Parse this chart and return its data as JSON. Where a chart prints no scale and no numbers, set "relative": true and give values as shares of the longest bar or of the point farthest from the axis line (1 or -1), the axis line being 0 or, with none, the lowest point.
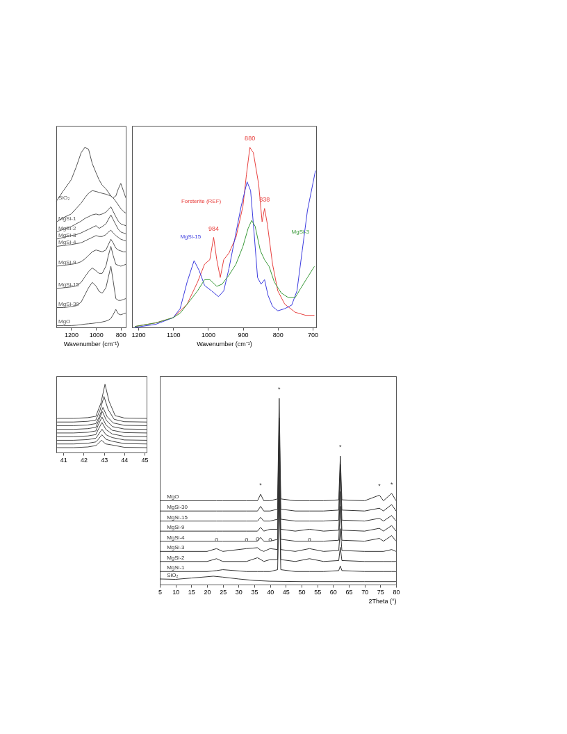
{
  "chart_data": [
    {
      "type": "line",
      "relative": true,
      "xlabel": "Wavenumber (cm⁻¹)",
      "xlim": [
        1320,
        760
      ],
      "xticks": [
        1200,
        1000,
        800
      ],
      "x": [
        1320,
        1262,
        1200,
        1160,
        1120,
        1090,
        1060,
        1030,
        1000,
        975,
        950,
        920,
        900,
        880,
        862,
        840,
        820,
        800,
        780,
        760
      ],
      "series": [
        {
          "name": "SiO₂",
          "color": "#555555",
          "values": [
            0.7,
            0.76,
            0.82,
            0.89,
            0.97,
            1.0,
            0.99,
            0.91,
            0.86,
            0.82,
            0.79,
            0.77,
            0.75,
            0.73,
            0.72,
            0.73,
            0.77,
            0.8,
            0.76,
            0.72
          ]
        },
        {
          "name": "MgSi-1",
          "color": "#555555",
          "values": [
            0.585,
            0.61,
            0.63,
            0.66,
            0.69,
            0.72,
            0.745,
            0.76,
            0.755,
            0.75,
            0.745,
            0.74,
            0.735,
            0.73,
            0.72,
            0.7,
            0.68,
            0.66,
            0.645,
            0.635
          ]
        },
        {
          "name": "MgSi-2",
          "color": "#555555",
          "values": [
            0.53,
            0.545,
            0.56,
            0.575,
            0.59,
            0.605,
            0.615,
            0.625,
            0.63,
            0.625,
            0.63,
            0.64,
            0.655,
            0.67,
            0.645,
            0.615,
            0.59,
            0.575,
            0.57,
            0.565
          ]
        },
        {
          "name": "MgSi-3",
          "color": "#555555",
          "values": [
            0.49,
            0.5,
            0.51,
            0.515,
            0.525,
            0.535,
            0.545,
            0.555,
            0.565,
            0.55,
            0.56,
            0.575,
            0.6,
            0.625,
            0.6,
            0.57,
            0.545,
            0.53,
            0.525,
            0.52
          ]
        },
        {
          "name": "MgSi-4",
          "color": "#555555",
          "values": [
            0.45,
            0.455,
            0.46,
            0.465,
            0.47,
            0.48,
            0.49,
            0.5,
            0.51,
            0.505,
            0.505,
            0.515,
            0.53,
            0.54,
            0.525,
            0.51,
            0.5,
            0.49,
            0.485,
            0.48
          ]
        },
        {
          "name": "MgSi-9",
          "color": "#555555",
          "values": [
            0.34,
            0.345,
            0.35,
            0.355,
            0.365,
            0.38,
            0.4,
            0.42,
            0.43,
            0.425,
            0.42,
            0.43,
            0.46,
            0.49,
            0.47,
            0.44,
            0.43,
            0.425,
            0.42,
            0.42
          ]
        },
        {
          "name": "MgSi-15",
          "color": "#555555",
          "values": [
            0.215,
            0.22,
            0.225,
            0.23,
            0.25,
            0.28,
            0.31,
            0.33,
            0.315,
            0.3,
            0.3,
            0.34,
            0.4,
            0.45,
            0.4,
            0.35,
            0.345,
            0.34,
            0.345,
            0.35
          ]
        },
        {
          "name": "MgSi-30",
          "color": "#555555",
          "values": [
            0.11,
            0.11,
            0.115,
            0.12,
            0.14,
            0.18,
            0.22,
            0.25,
            0.23,
            0.2,
            0.19,
            0.22,
            0.28,
            0.34,
            0.26,
            0.16,
            0.15,
            0.15,
            0.155,
            0.16
          ]
        },
        {
          "name": "MgO",
          "color": "#555555",
          "values": [
            0.01,
            0.01,
            0.01,
            0.012,
            0.015,
            0.018,
            0.02,
            0.022,
            0.025,
            0.027,
            0.03,
            0.035,
            0.04,
            0.05,
            0.07,
            0.1,
            0.075,
            0.07,
            0.075,
            0.08
          ]
        }
      ]
    },
    {
      "type": "line",
      "relative": true,
      "xlabel": "Wavenumber (cm⁻¹)",
      "xlim": [
        1218,
        690
      ],
      "xticks": [
        1200,
        1100,
        1000,
        900,
        800,
        700
      ],
      "series": [
        {
          "name": "Forsterite (REF)",
          "color": "#e8413f",
          "x": [
            1210,
            1150,
            1100,
            1060,
            1030,
            1010,
            995,
            984,
            975,
            965,
            955,
            940,
            920,
            900,
            890,
            880,
            870,
            855,
            845,
            838,
            830,
            815,
            800,
            780,
            750,
            720,
            695
          ],
          "values": [
            0.005,
            0.025,
            0.054,
            0.129,
            0.252,
            0.351,
            0.376,
            0.5,
            0.376,
            0.277,
            0.376,
            0.413,
            0.5,
            0.673,
            0.847,
            1.0,
            0.97,
            0.797,
            0.587,
            0.661,
            0.574,
            0.351,
            0.203,
            0.129,
            0.084,
            0.067,
            0.067
          ]
        },
        {
          "name": "MgSi-15",
          "color": "#3b3bdf",
          "x": [
            1210,
            1150,
            1100,
            1080,
            1060,
            1040,
            1025,
            1010,
            990,
            970,
            955,
            940,
            920,
            905,
            888,
            878,
            868,
            858,
            848,
            838,
            828,
            815,
            800,
            780,
            760,
            745,
            730,
            715,
            692
          ],
          "values": [
            0,
            0.017,
            0.054,
            0.104,
            0.252,
            0.371,
            0.314,
            0.233,
            0.203,
            0.171,
            0.203,
            0.327,
            0.525,
            0.673,
            0.809,
            0.76,
            0.525,
            0.277,
            0.24,
            0.265,
            0.178,
            0.116,
            0.092,
            0.104,
            0.124,
            0.203,
            0.426,
            0.649,
            0.871
          ]
        },
        {
          "name": "MgSi-3",
          "color": "#3a9a3a",
          "x": [
            1210,
            1150,
            1100,
            1080,
            1050,
            1030,
            1010,
            995,
            975,
            960,
            940,
            920,
            900,
            885,
            875,
            865,
            850,
            838,
            825,
            810,
            790,
            770,
            750,
            735,
            715,
            695
          ],
          "values": [
            0.005,
            0.025,
            0.054,
            0.079,
            0.153,
            0.203,
            0.265,
            0.265,
            0.228,
            0.24,
            0.29,
            0.351,
            0.45,
            0.55,
            0.594,
            0.562,
            0.426,
            0.376,
            0.339,
            0.252,
            0.191,
            0.166,
            0.166,
            0.215,
            0.277,
            0.339
          ]
        }
      ],
      "annotations": [
        {
          "text": "880",
          "x": 880,
          "y": 1.0
        },
        {
          "text": "984",
          "x": 984,
          "y": 0.5
        },
        {
          "text": "838",
          "x": 838,
          "y": 0.661
        }
      ]
    },
    {
      "type": "line",
      "relative": true,
      "xlim": [
        40.65,
        45.1
      ],
      "xticks": [
        41,
        42,
        43,
        44,
        45
      ],
      "series": [
        {
          "color": "#444444",
          "x": [
            40.65,
            41.5,
            42.2,
            42.6,
            42.85,
            43.05,
            43.25,
            43.55,
            44,
            45.1
          ],
          "values": [
            0.5,
            0.5,
            0.51,
            0.53,
            0.725,
            1.0,
            0.75,
            0.54,
            0.505,
            0.5
          ]
        },
        {
          "color": "#444444",
          "x": [
            40.65,
            41.5,
            42.2,
            42.6,
            42.8,
            43.0,
            43.2,
            43.5,
            44,
            45.1
          ],
          "values": [
            0.446,
            0.446,
            0.456,
            0.476,
            0.615,
            0.82,
            0.633,
            0.486,
            0.451,
            0.446
          ]
        },
        {
          "color": "#444444",
          "x": [
            40.65,
            41.5,
            42.2,
            42.6,
            42.75,
            42.95,
            43.15,
            43.45,
            44,
            45.1
          ],
          "values": [
            0.393,
            0.393,
            0.403,
            0.423,
            0.513,
            0.66,
            0.527,
            0.433,
            0.398,
            0.393
          ]
        },
        {
          "color": "#444444",
          "x": [
            40.65,
            41.5,
            42.2,
            42.6,
            42.72,
            42.92,
            43.12,
            43.42,
            44,
            45.1
          ],
          "values": [
            0.339,
            0.339,
            0.349,
            0.369,
            0.456,
            0.6,
            0.47,
            0.379,
            0.344,
            0.339
          ]
        },
        {
          "color": "#444444",
          "x": [
            40.65,
            41.5,
            42.2,
            42.6,
            42.7,
            42.9,
            43.1,
            43.4,
            44,
            45.1
          ],
          "values": [
            0.286,
            0.286,
            0.296,
            0.316,
            0.392,
            0.52,
            0.403,
            0.326,
            0.291,
            0.286
          ]
        },
        {
          "color": "#444444",
          "x": [
            40.65,
            41.5,
            42.2,
            42.6,
            42.7,
            42.9,
            43.1,
            43.4,
            44,
            45.1
          ],
          "values": [
            0.232,
            0.232,
            0.242,
            0.262,
            0.326,
            0.44,
            0.336,
            0.272,
            0.237,
            0.232
          ]
        },
        {
          "color": "#444444",
          "x": [
            40.65,
            41.5,
            42.2,
            42.6,
            42.7,
            42.9,
            43.1,
            43.4,
            44,
            45.1
          ],
          "values": [
            0.179,
            0.179,
            0.189,
            0.209,
            0.251,
            0.34,
            0.26,
            0.219,
            0.184,
            0.179
          ]
        },
        {
          "color": "#444444",
          "x": [
            40.65,
            41.5,
            42.2,
            42.6,
            42.7,
            42.9,
            43.1,
            43.4,
            44,
            45.1
          ],
          "values": [
            0.125,
            0.125,
            0.135,
            0.155,
            0.186,
            0.26,
            0.193,
            0.165,
            0.13,
            0.125
          ]
        },
        {
          "color": "#444444",
          "x": [
            40.65,
            41.5,
            42.2,
            42.6,
            42.68,
            42.88,
            43.08,
            43.38,
            44,
            45.1
          ],
          "values": [
            0.071,
            0.071,
            0.081,
            0.101,
            0.12,
            0.18,
            0.126,
            0.111,
            0.076,
            0.071
          ]
        }
      ]
    },
    {
      "type": "line",
      "relative": true,
      "xlabel": "2Theta (°)",
      "xlim": [
        5,
        80
      ],
      "xticks": [
        5,
        10,
        15,
        20,
        25,
        30,
        35,
        40,
        45,
        50,
        55,
        60,
        65,
        70,
        75,
        80
      ],
      "x": [
        5,
        20,
        23,
        25,
        32.5,
        36,
        37,
        38,
        40,
        42.4,
        42.9,
        43.4,
        48,
        52.5,
        57,
        61.8,
        62.3,
        62.8,
        70,
        74.7,
        76,
        78.6,
        80
      ],
      "series": [
        {
          "name": "MgO",
          "color": "#333333",
          "values": [
            0.45,
            0.45,
            0.45,
            0.45,
            0.45,
            0.45,
            0.485,
            0.45,
            0.45,
            0.46,
            1.0,
            0.46,
            0.45,
            0.45,
            0.45,
            0.455,
            0.69,
            0.455,
            0.45,
            0.48,
            0.45,
            0.49,
            0.45
          ]
        },
        {
          "name": "MgSi-30",
          "color": "#333333",
          "values": [
            0.395,
            0.395,
            0.395,
            0.395,
            0.395,
            0.395,
            0.42,
            0.395,
            0.395,
            0.405,
            0.895,
            0.405,
            0.395,
            0.395,
            0.395,
            0.4,
            0.645,
            0.4,
            0.395,
            0.41,
            0.395,
            0.43,
            0.395
          ]
        },
        {
          "name": "MgSi-15",
          "color": "#333333",
          "values": [
            0.341,
            0.341,
            0.341,
            0.341,
            0.341,
            0.341,
            0.361,
            0.341,
            0.341,
            0.351,
            0.8,
            0.351,
            0.341,
            0.341,
            0.341,
            0.346,
            0.6,
            0.346,
            0.341,
            0.356,
            0.341,
            0.371,
            0.341
          ]
        },
        {
          "name": "MgSi-9",
          "color": "#333333",
          "values": [
            0.287,
            0.287,
            0.287,
            0.287,
            0.287,
            0.287,
            0.307,
            0.287,
            0.297,
            0.297,
            0.75,
            0.297,
            0.287,
            0.297,
            0.287,
            0.292,
            0.5,
            0.292,
            0.287,
            0.302,
            0.287,
            0.317,
            0.287
          ]
        },
        {
          "name": "MgSi-4",
          "color": "#333333",
          "values": [
            0.233,
            0.233,
            0.233,
            0.233,
            0.233,
            0.233,
            0.253,
            0.233,
            0.233,
            0.243,
            0.7,
            0.243,
            0.233,
            0.233,
            0.233,
            0.238,
            0.42,
            0.238,
            0.233,
            0.248,
            0.233,
            0.263,
            0.233
          ]
        },
        {
          "name": "MgSi-3",
          "color": "#333333",
          "values": [
            0.178,
            0.178,
            0.193,
            0.178,
            0.193,
            0.198,
            0.185,
            0.178,
            0.193,
            0.188,
            0.62,
            0.188,
            0.178,
            0.193,
            0.178,
            0.183,
            0.3,
            0.183,
            0.178,
            0.178,
            0.178,
            0.188,
            0.178
          ]
        },
        {
          "name": "MgSi-2",
          "color": "#333333",
          "values": [
            0.124,
            0.124,
            0.139,
            0.124,
            0.124,
            0.144,
            0.135,
            0.124,
            0.134,
            0.134,
            0.55,
            0.134,
            0.124,
            0.139,
            0.124,
            0.129,
            0.2,
            0.129,
            0.124,
            0.124,
            0.124,
            0.124,
            0.124
          ]
        },
        {
          "name": "MgSi-1",
          "color": "#333333",
          "values": [
            0.07,
            0.07,
            0.075,
            0.08,
            0.07,
            0.07,
            0.07,
            0.07,
            0.07,
            0.08,
            0.5,
            0.08,
            0.07,
            0.07,
            0.07,
            0.075,
            0.1,
            0.075,
            0.07,
            0.07,
            0.07,
            0.07,
            0.07
          ]
        },
        {
          "name": "SiO₂",
          "color": "#333333",
          "x": [
            5,
            10,
            15,
            20,
            22,
            25,
            30,
            35,
            40,
            50,
            60,
            70,
            80
          ],
          "values": [
            0.03,
            0.028,
            0.035,
            0.042,
            0.045,
            0.04,
            0.03,
            0.022,
            0.018,
            0.016,
            0.016,
            0.016,
            0.016
          ]
        }
      ],
      "annotations": [
        {
          "text": "*",
          "x": 37,
          "y": 0.485
        },
        {
          "text": "*",
          "x": 42.9,
          "y": 1.0
        },
        {
          "text": "*",
          "x": 62.3,
          "y": 0.69
        },
        {
          "text": "*",
          "x": 74.7,
          "y": 0.48
        },
        {
          "text": "*",
          "x": 78.6,
          "y": 0.49
        },
        {
          "text": "o",
          "x": 23,
          "y": 0.193
        },
        {
          "text": "o",
          "x": 32.5,
          "y": 0.193
        },
        {
          "text": "o",
          "x": 36,
          "y": 0.198
        },
        {
          "text": "o",
          "x": 40,
          "y": 0.193
        },
        {
          "text": "o",
          "x": 52.5,
          "y": 0.193
        }
      ]
    }
  ]
}
